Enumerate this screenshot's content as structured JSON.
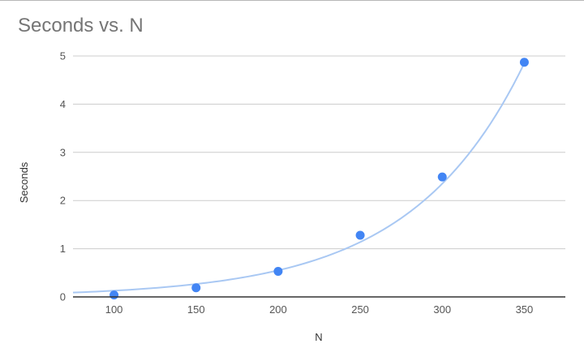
{
  "chart_data": {
    "type": "scatter",
    "title": "Seconds vs. N",
    "xlabel": "N",
    "ylabel": "Seconds",
    "x": [
      100,
      150,
      200,
      250,
      300,
      350
    ],
    "y": [
      0.04,
      0.19,
      0.53,
      1.28,
      2.49,
      4.87
    ],
    "xlim": [
      75,
      375
    ],
    "ylim": [
      0,
      5
    ],
    "xticks": [
      "100",
      "150",
      "200",
      "250",
      "300",
      "350"
    ],
    "yticks": [
      "0",
      "1",
      "2",
      "3",
      "4",
      "5"
    ],
    "trendline": {
      "type": "exponential",
      "x_range": [
        75,
        350
      ],
      "y_start": 0.09,
      "y_end": 4.85
    },
    "grid": true,
    "legend": "none",
    "colors": {
      "points": "#4285f4",
      "trendline": "#a9c8f3",
      "grid": "#cccccc",
      "axis": "#333333",
      "text": "#555555",
      "title": "#757575"
    }
  }
}
